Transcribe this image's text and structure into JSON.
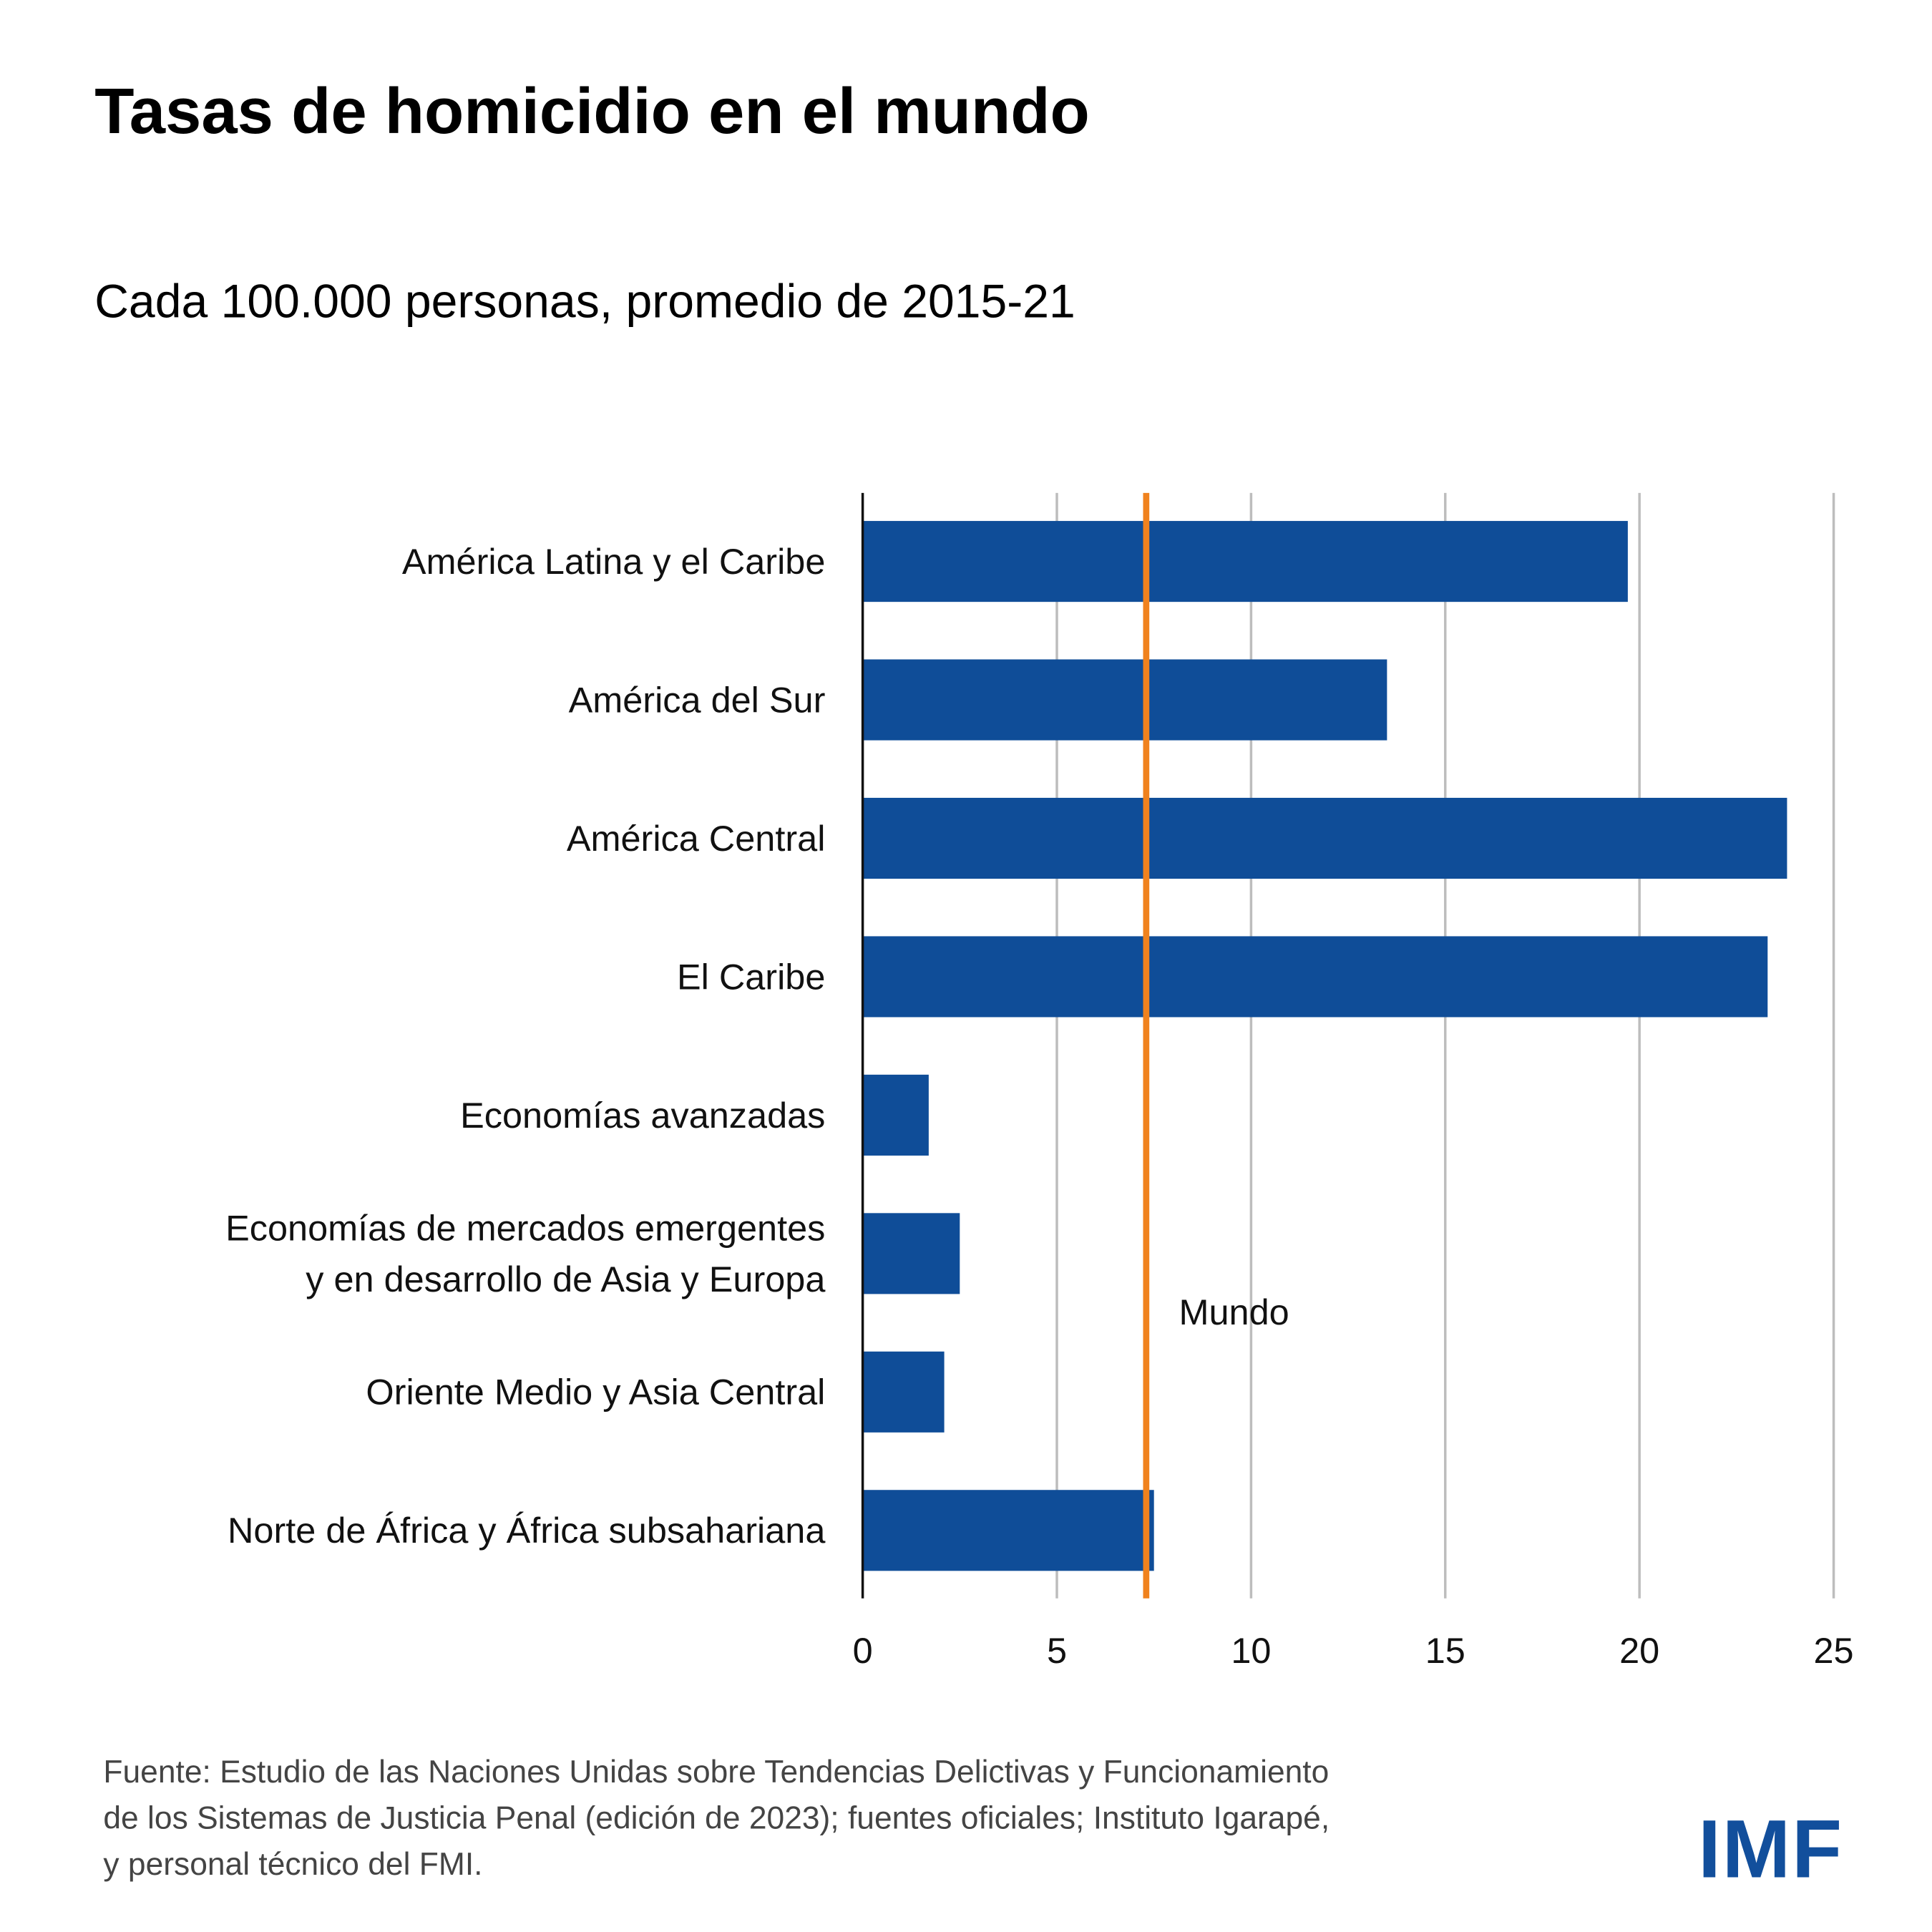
{
  "title": "Tasas de homicidio en el mundo",
  "subtitle": "Cada 100.000 personas, promedio de 2015-21",
  "chart_data": {
    "type": "bar",
    "orientation": "horizontal",
    "categories": [
      [
        "América Latina y el Caribe"
      ],
      [
        "América del Sur"
      ],
      [
        "América Central"
      ],
      [
        "El Caribe"
      ],
      [
        "Economías avanzadas"
      ],
      [
        "Economías de mercados emergentes",
        "y en desarrollo de Asia y Europa"
      ],
      [
        "Oriente Medio y Asia Central"
      ],
      [
        "Norte de África y África subsahariana"
      ]
    ],
    "values": [
      19.7,
      13.5,
      23.8,
      23.3,
      1.7,
      2.5,
      2.1,
      7.5
    ],
    "reference_line": {
      "label": "Mundo",
      "value": 7.3,
      "color": "#f0821e"
    },
    "xlim": [
      0,
      25
    ],
    "xticks": [
      "0",
      "5",
      "10",
      "15",
      "20",
      "25"
    ],
    "grid": true,
    "bar_color": "#0f4d98",
    "xlabel": "",
    "ylabel": ""
  },
  "source_lines": [
    "Fuente: Estudio de las Naciones Unidas sobre Tendencias Delictivas y Funcionamiento",
    "de los Sistemas de Justicia Penal (edición de 2023); fuentes oficiales; Instituto Igarapé,",
    "y personal técnico del FMI."
  ],
  "logo": "IMF"
}
